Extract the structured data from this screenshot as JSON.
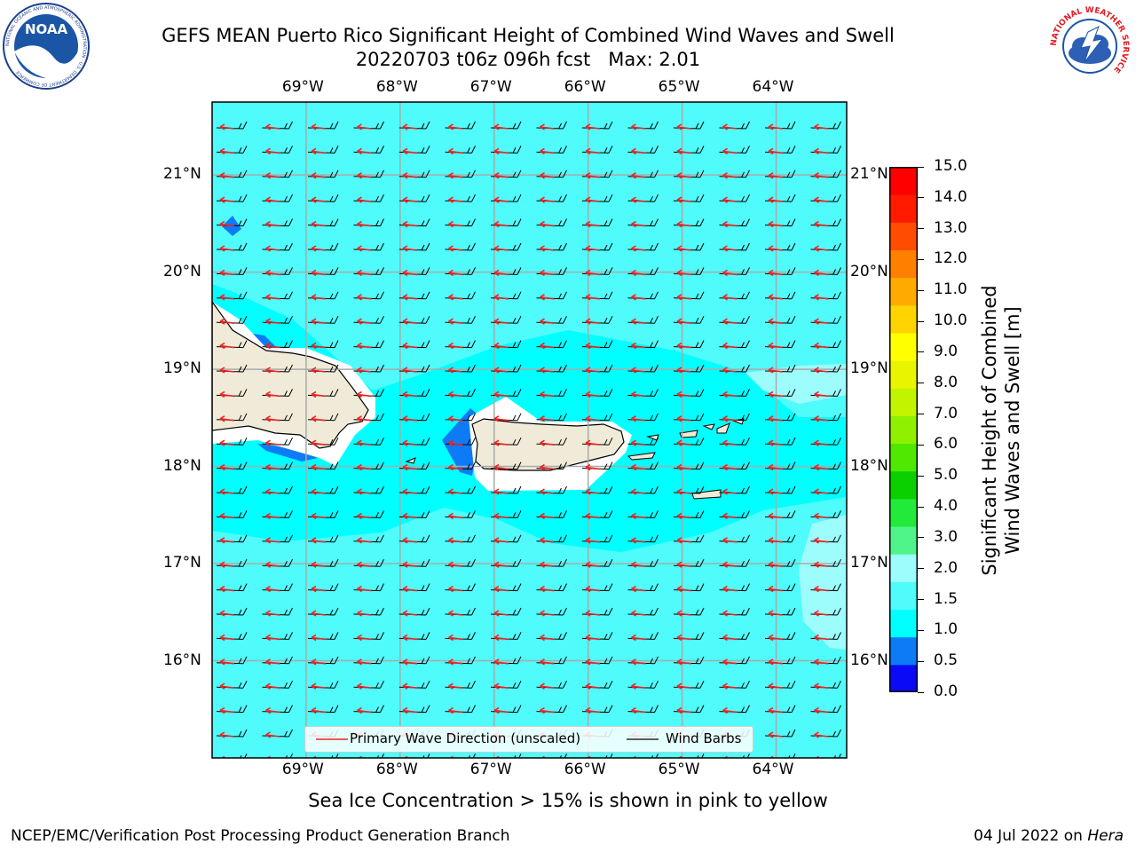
{
  "title": {
    "line1": "GEFS MEAN Puerto Rico Significant Height of Combined Wind Waves and Swell",
    "line2": "20220703 t06z 096h fcst   Max: 2.01"
  },
  "logos": {
    "noaa_text": "NOAA",
    "noaa_ring": "NATIONAL OCEANIC AND ATMOSPHERIC ADMINISTRATION · U.S. DEPARTMENT OF COMMERCE",
    "nws_ring": "NATIONAL WEATHER SERVICE"
  },
  "map": {
    "lon_labels": [
      "69°W",
      "68°W",
      "67°W",
      "66°W",
      "65°W",
      "64°W"
    ],
    "lat_labels": [
      "21°N",
      "20°N",
      "19°N",
      "18°N",
      "17°N",
      "16°N"
    ],
    "lon_range": [
      -70.0,
      -63.25
    ],
    "lat_range": [
      15.0,
      21.75
    ],
    "grid": true,
    "ocean_color": "#00ffff",
    "land_color": "#efebd8",
    "colors": {
      "band_0_5_1_0": "#0d7bf6",
      "band_1_0_1_5": "#00ffff",
      "band_1_5_2_0": "#4ffbfb",
      "band_2_0_3_0": "#9cfdfc",
      "wave_arrow": "#ee2222",
      "barb": "#000000"
    }
  },
  "legend": {
    "wave_label": "Primary Wave Direction (unscaled)",
    "barb_label": "Wind Barbs"
  },
  "colorbar": {
    "label_line1": "Significant Height of Combined",
    "label_line2": "Wind Waves and Swell [m]",
    "ticks": [
      "15.0",
      "14.0",
      "13.0",
      "12.0",
      "11.0",
      "10.0",
      "9.0",
      "8.0",
      "7.0",
      "6.0",
      "5.0",
      "4.0",
      "3.0",
      "2.0",
      "1.5",
      "1.0",
      "0.5",
      "0.0"
    ],
    "colors_bottom_to_top": [
      "#0a0af6",
      "#0d7bf6",
      "#00ffff",
      "#4ffbfb",
      "#9cfdfc",
      "#50f58a",
      "#22ea3a",
      "#0bd000",
      "#4ee800",
      "#8ff000",
      "#c2f400",
      "#e8f400",
      "#ffff00",
      "#ffd400",
      "#ffaa00",
      "#ff7f00",
      "#ff4c00",
      "#ff1a00",
      "#ff0000"
    ]
  },
  "caption": "Sea Ice Concentration > 15% is shown in pink to yellow",
  "footer": {
    "left": "NCEP/EMC/Verification Post Processing Product Generation Branch",
    "right_prefix": "04 Jul 2022 on ",
    "right_host": "Hera"
  }
}
